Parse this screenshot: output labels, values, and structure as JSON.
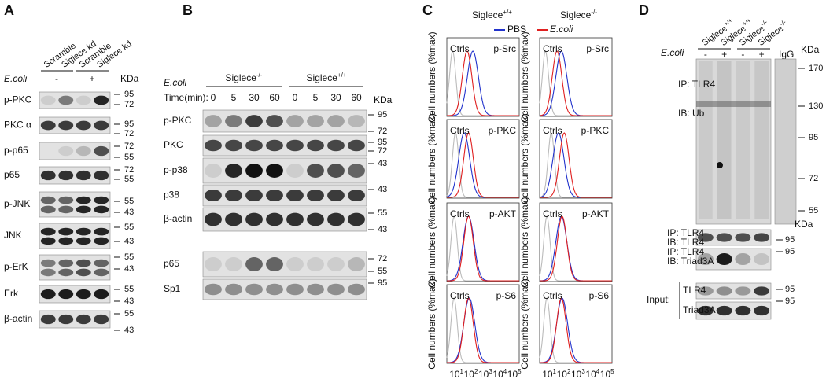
{
  "A": {
    "letter": "A",
    "lanes": [
      "Scramble",
      "Siglece kd",
      "Scramble",
      "Siglece kd"
    ],
    "treatment_label": "E.coli",
    "treatment": [
      "-",
      "+"
    ],
    "unit": "KDa",
    "blots": [
      {
        "label": "p-PKC",
        "markers": [
          "95",
          "72"
        ]
      },
      {
        "label": "PKC α",
        "markers": [
          "95",
          "72"
        ]
      },
      {
        "label": "p-p65",
        "markers": [
          "72",
          "55"
        ]
      },
      {
        "label": "p65",
        "markers": [
          "72",
          "55"
        ]
      },
      {
        "label": "p-JNK",
        "markers": [
          "55",
          "43"
        ]
      },
      {
        "label": "JNK",
        "markers": [
          "55",
          "43"
        ]
      },
      {
        "label": "p-ErK",
        "markers": [
          "55",
          "43"
        ]
      },
      {
        "label": "Erk",
        "markers": [
          "55",
          "43"
        ]
      },
      {
        "label": "β-actin",
        "markers": [
          "55",
          "43"
        ]
      }
    ]
  },
  "B": {
    "letter": "B",
    "treatment_label": "E.coli",
    "time_label": "Time(min):",
    "groups": [
      {
        "name": "Siglece",
        "sup": "-/-"
      },
      {
        "name": "Siglece",
        "sup": "+/+"
      }
    ],
    "times": [
      "0",
      "5",
      "30",
      "60",
      "0",
      "5",
      "30",
      "60"
    ],
    "unit": "KDa",
    "blots": [
      {
        "label": "p-PKC",
        "markers": [
          "95",
          "72"
        ]
      },
      {
        "label": "PKC",
        "markers": [
          "95",
          "72"
        ]
      },
      {
        "label": "p-p38",
        "markers": [
          "43"
        ]
      },
      {
        "label": "p38",
        "markers": [
          "43"
        ]
      },
      {
        "label": "β-actin",
        "markers": [
          "55",
          "43"
        ]
      },
      {
        "label": "p65",
        "markers": [
          "72",
          "55"
        ]
      },
      {
        "label": "Sp1",
        "markers": [
          "95"
        ]
      }
    ]
  },
  "C": {
    "letter": "C",
    "columns": [
      {
        "name": "Siglece",
        "sup": "+/+"
      },
      {
        "name": "Siglece",
        "sup": "-/-"
      }
    ],
    "legend": [
      {
        "name": "PBS",
        "color": "#2233cc"
      },
      {
        "name": "E.coli",
        "color": "#e02020"
      }
    ],
    "ctrl_label": "Ctrls",
    "y_label": "Cell numbers (%max)",
    "rows": [
      "p-Src",
      "p-PKC",
      "p-AKT",
      "p-S6"
    ],
    "tick_base": "10",
    "tick_exponents": [
      "1",
      "2",
      "3",
      "4",
      "5"
    ]
  },
  "D": {
    "letter": "D",
    "lanes": [
      {
        "name": "Siglece",
        "sup": "+/+"
      },
      {
        "name": "Siglece",
        "sup": "+/+"
      },
      {
        "name": "Siglece",
        "sup": "-/-"
      },
      {
        "name": "Siglece",
        "sup": "-/-"
      }
    ],
    "treatment_label": "E.coli",
    "treatment": [
      "-",
      "+",
      "-",
      "+"
    ],
    "igg": "IgG",
    "unit": "KDa",
    "main": {
      "ip": "IP: TLR4",
      "ib": "IB: Ub",
      "markers": [
        "170",
        "130",
        "95",
        "72",
        "55"
      ]
    },
    "small": [
      {
        "ip": "IP: TLR4",
        "ib": "IB: TLR4",
        "unit": "KDa",
        "markers": [
          "95"
        ]
      },
      {
        "ip": "IP: TLR4",
        "ib": "IB: Triad3A",
        "markers": [
          "95"
        ]
      }
    ],
    "input": {
      "label": "Input:",
      "blots": [
        {
          "label": "TLR4",
          "markers": [
            "95"
          ]
        },
        {
          "label": "Triad3A",
          "markers": [
            "95"
          ]
        }
      ]
    }
  }
}
